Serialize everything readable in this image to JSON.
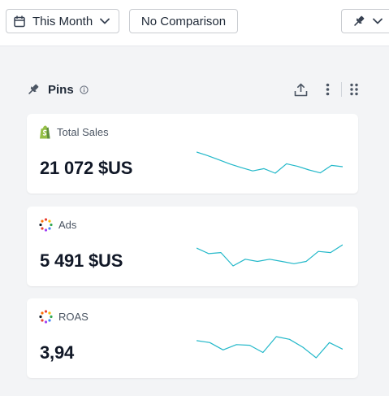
{
  "toolbar": {
    "period_label": "This Month",
    "comparison_label": "No Comparison"
  },
  "section": {
    "title": "Pins"
  },
  "cards": [
    {
      "label": "Total Sales",
      "value": "21 072 $US",
      "source_icon": "shopify-icon",
      "trend": [
        7.0,
        5.9,
        4.6,
        3.3,
        2.2,
        1.2,
        1.9,
        0.5,
        3.4,
        2.6,
        1.5,
        0.6,
        2.9,
        2.5
      ]
    },
    {
      "label": "Ads",
      "value": "5 491 $US",
      "source_icon": "ads-dots-icon",
      "trend": [
        3.2,
        2.7,
        2.8,
        1.6,
        2.2,
        2.0,
        2.2,
        2.0,
        1.8,
        2.0,
        2.9,
        2.8,
        3.5
      ]
    },
    {
      "label": "ROAS",
      "value": "3,94",
      "source_icon": "ads-dots-icon",
      "trend": [
        3.8,
        3.5,
        2.4,
        3.2,
        3.1,
        2.0,
        4.4,
        4.0,
        2.8,
        1.2,
        3.5,
        2.5
      ]
    }
  ],
  "colors": {
    "sparkline": "#22b8c9",
    "shopify_green": "#95bf47"
  }
}
